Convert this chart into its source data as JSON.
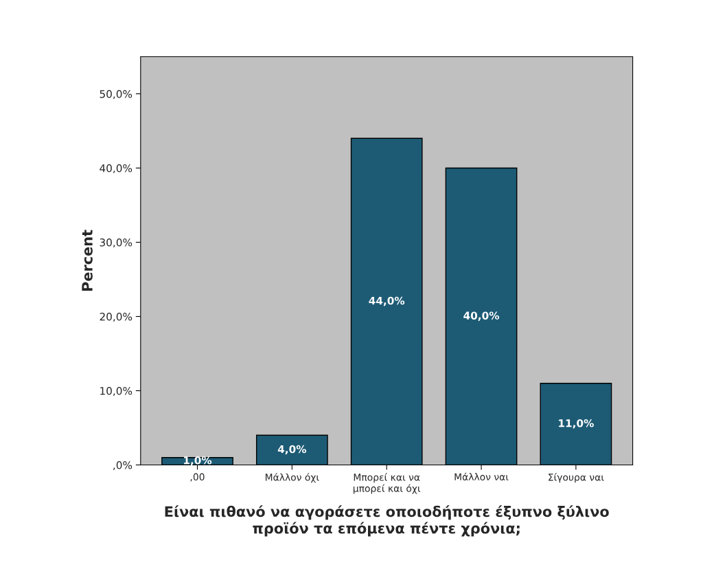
{
  "chart_data": {
    "type": "bar",
    "categories": [
      ",00",
      "Μάλλον όχι",
      "Μπορεί και να\nμπορεί και όχι",
      "Μάλλον ναι",
      "Σίγουρα ναι"
    ],
    "values": [
      1.0,
      4.0,
      44.0,
      40.0,
      11.0
    ],
    "value_labels": [
      "1,0%",
      "4,0%",
      "44,0%",
      "40,0%",
      "11,0%"
    ],
    "color": "#1d5b75",
    "ylabel": "Percent",
    "xlabel": "Είναι πιθανό να αγοράσετε οποιοδήποτε έξυπνο ξύλινο\nπροϊόν τα επόμενα πέντε χρόνια;",
    "ylim": [
      0,
      55
    ],
    "yticks": [
      {
        "value": 0,
        "label": ",0%"
      },
      {
        "value": 10,
        "label": "10,0%"
      },
      {
        "value": 20,
        "label": "20,0%"
      },
      {
        "value": 30,
        "label": "30,0%"
      },
      {
        "value": 40,
        "label": "40,0%"
      },
      {
        "value": 50,
        "label": "50,0%"
      }
    ],
    "grid": false
  }
}
